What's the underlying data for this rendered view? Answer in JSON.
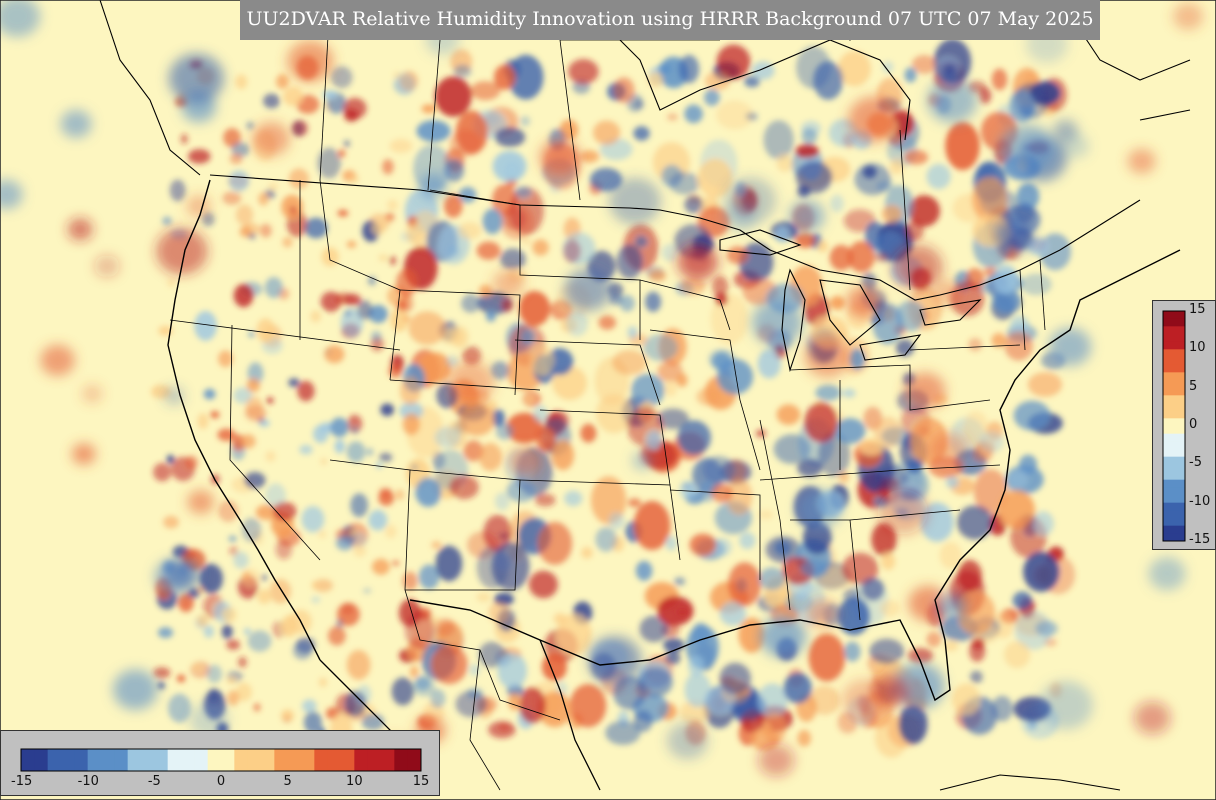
{
  "title": "UU2DVAR Relative Humidity Innovation using HRRR Background 07 UTC 07 May 2025",
  "colors": {
    "background": "#fdf6c0",
    "title_box": "#8a8a8a",
    "legend_panel": "#c0c0c0",
    "boundaries": "#000000",
    "scale": [
      "#2a3d8f",
      "#3b63ad",
      "#5b8fc7",
      "#9cc6e0",
      "#e4f3f7",
      "#fdf6c0",
      "#fccf87",
      "#f59a55",
      "#e45a33",
      "#bd1f24",
      "#900b19"
    ]
  },
  "colorbar_vertical": {
    "ticks": [
      "15",
      "10",
      "5",
      "0",
      "-5",
      "-10",
      "-15"
    ]
  },
  "colorbar_horizontal": {
    "ticks": [
      "-15",
      "-10",
      "-5",
      "0",
      "5",
      "10",
      "15"
    ]
  }
}
